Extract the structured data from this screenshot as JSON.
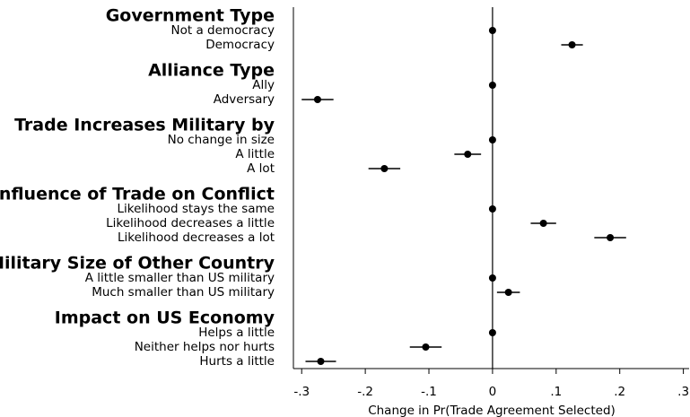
{
  "chart_data": {
    "type": "coefplot",
    "xlabel": "Change in Pr(Trade Agreement Selected)",
    "xlim": [
      -0.313,
      0.309
    ],
    "xticks": [
      {
        "value": -0.3,
        "label": "-.3"
      },
      {
        "value": -0.2,
        "label": "-.2"
      },
      {
        "value": -0.1,
        "label": "-.1"
      },
      0,
      {
        "value": 0.1,
        "label": ".1"
      },
      {
        "value": 0.2,
        "label": ".2"
      },
      {
        "value": 0.3,
        "label": ".3"
      }
    ],
    "grid": false,
    "color": "#000000",
    "groups": [
      {
        "name": "Government Type",
        "categories": [
          "Not a democracy",
          "Democracy"
        ],
        "values": [
          0,
          0.125
        ],
        "errors": [
          null,
          0.017
        ]
      },
      {
        "name": "Alliance Type",
        "categories": [
          "Ally",
          "Adversary"
        ],
        "values": [
          0,
          -0.275
        ],
        "errors": [
          null,
          0.025
        ]
      },
      {
        "name": "Trade Increases Military by",
        "categories": [
          "No change in size",
          "A little",
          "A lot"
        ],
        "values": [
          0,
          -0.039,
          -0.17
        ],
        "errors": [
          null,
          0.021,
          0.025
        ]
      },
      {
        "name": "Influence of Trade on Conflict",
        "categories": [
          "Likelihood stays the same",
          "Likelihood decreases a little",
          "Likelihood decreases a lot"
        ],
        "values": [
          0,
          0.08,
          0.185
        ],
        "errors": [
          null,
          0.02,
          0.025
        ]
      },
      {
        "name": "Military Size of Other Country",
        "categories": [
          "A little smaller than US military",
          "Much smaller than US military"
        ],
        "values": [
          0,
          0.025
        ],
        "errors": [
          null,
          0.018
        ]
      },
      {
        "name": "Impact on US Economy",
        "categories": [
          "Helps a little",
          "Neither helps nor hurts",
          "Hurts a little"
        ],
        "values": [
          0,
          -0.105,
          -0.27
        ],
        "errors": [
          null,
          0.025,
          0.024
        ]
      }
    ]
  }
}
